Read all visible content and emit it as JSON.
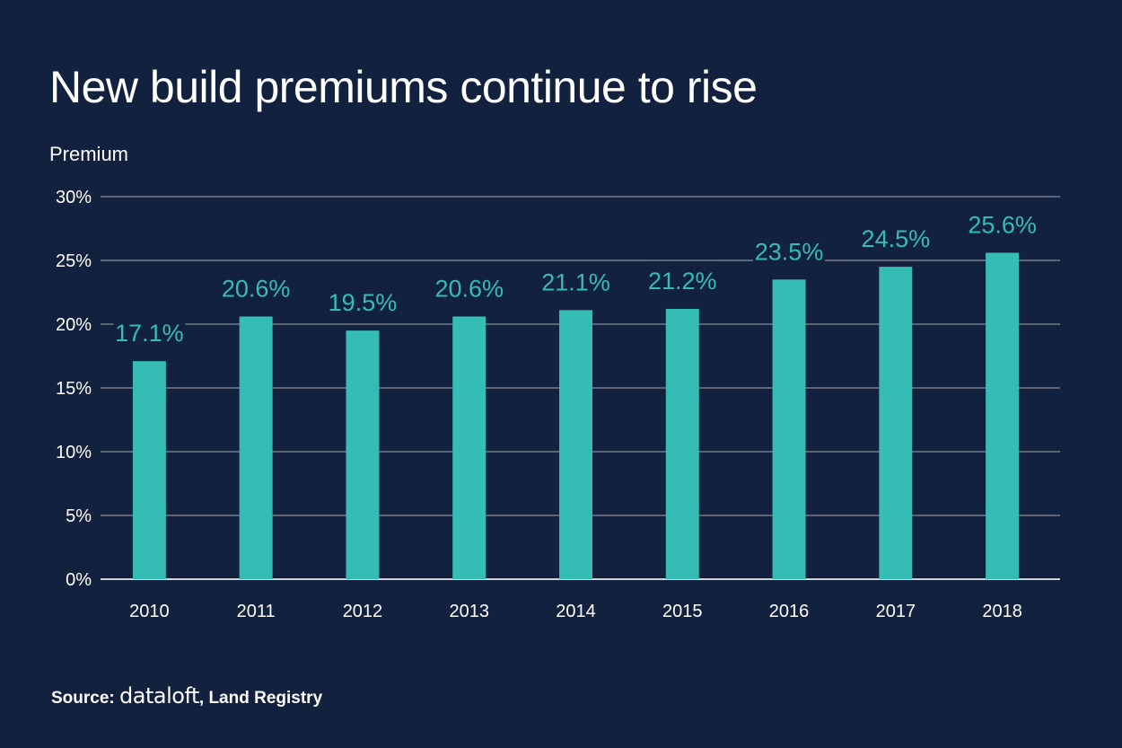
{
  "colors": {
    "background": "#12213d",
    "bar": "#35bcb5",
    "grid": "#5c6578",
    "baseline": "#d0d4da",
    "text": "#ffffff",
    "data_label": "#35bcb5"
  },
  "source": {
    "prefix": "Source:",
    "brand": "dataloft",
    "rest": ", Land Registry"
  },
  "chart_data": {
    "type": "bar",
    "title": "New build premiums continue to rise",
    "xlabel": "",
    "ylabel": "Premium",
    "categories": [
      "2010",
      "2011",
      "2012",
      "2013",
      "2014",
      "2015",
      "2016",
      "2017",
      "2018"
    ],
    "values": [
      17.1,
      20.6,
      19.5,
      20.6,
      21.1,
      21.2,
      23.5,
      24.5,
      25.6
    ],
    "data_labels": [
      "17.1%",
      "20.6%",
      "19.5%",
      "20.6%",
      "21.1%",
      "21.2%",
      "23.5%",
      "24.5%",
      "25.6%"
    ],
    "ylim": [
      0,
      30
    ],
    "yticks": [
      0,
      5,
      10,
      15,
      20,
      25,
      30
    ],
    "ytick_labels": [
      "0%",
      "5%",
      "10%",
      "15%",
      "20%",
      "25%",
      "30%"
    ],
    "grid": true,
    "legend": "none"
  }
}
